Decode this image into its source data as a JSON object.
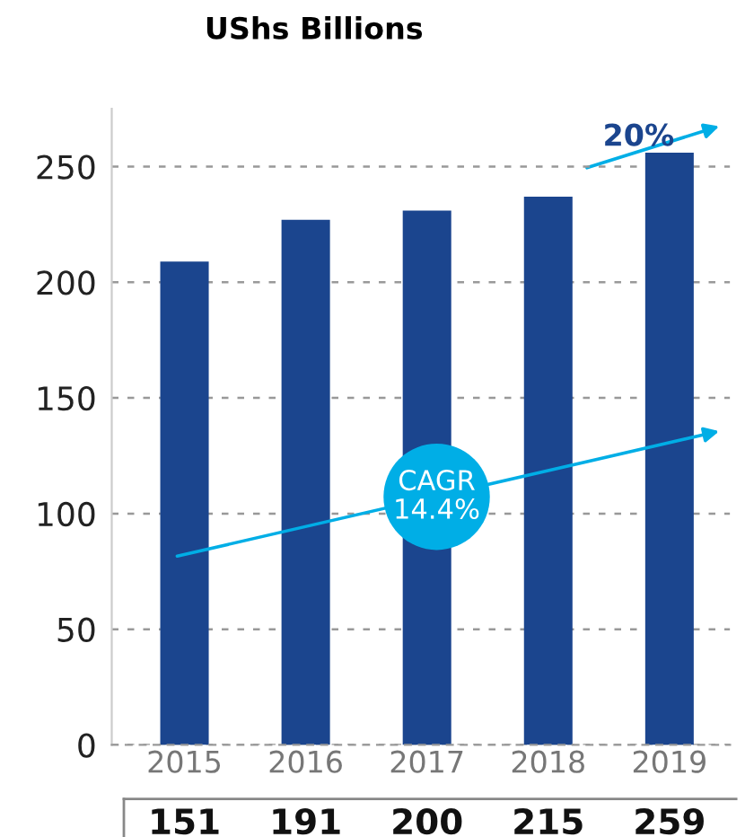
{
  "chart_data": {
    "type": "bar",
    "title": "UShs Billions",
    "categories": [
      "2015",
      "2016",
      "2017",
      "2018",
      "2019"
    ],
    "values": [
      209,
      227,
      231,
      237,
      256
    ],
    "color": "#1b458e",
    "ylim": [
      0,
      275
    ],
    "yticks": [
      0,
      50,
      100,
      150,
      200,
      250
    ],
    "grid": "y",
    "annotations": [
      "20%",
      "CAGR\n14.4%",
      "151",
      "191",
      "200",
      "215",
      "259"
    ]
  }
}
